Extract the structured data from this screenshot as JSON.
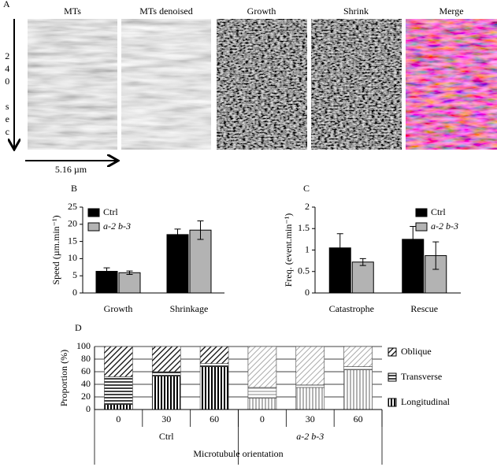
{
  "panel_a": {
    "label": "A",
    "columns": [
      "MTs",
      "MTs denoised",
      "Growth",
      "Shrink",
      "Merge"
    ],
    "time_label": "240 sec",
    "distance_label": "5.16 µm"
  },
  "chart_data": [
    {
      "type": "bar",
      "panel_label": "B",
      "ylabel": "Speed (µm.min⁻¹)",
      "categories": [
        "Growth",
        "Shrinkage"
      ],
      "series": [
        {
          "name": "Ctrl",
          "color": "#000000",
          "values": [
            6.3,
            17.0
          ],
          "errors": [
            1.0,
            1.6
          ]
        },
        {
          "name": "a-2 b-3",
          "color": "#b3b3b3",
          "values": [
            5.9,
            18.3
          ],
          "errors": [
            0.5,
            2.7
          ]
        }
      ],
      "ylim": [
        0,
        25
      ],
      "yticks": [
        0,
        5,
        10,
        15,
        20,
        25
      ],
      "legend": "upper left"
    },
    {
      "type": "bar",
      "panel_label": "C",
      "ylabel": "Freq. (event.min⁻¹)",
      "categories": [
        "Catastrophe",
        "Rescue"
      ],
      "series": [
        {
          "name": "Ctrl",
          "color": "#000000",
          "values": [
            1.05,
            1.25
          ],
          "errors": [
            0.33,
            0.3
          ]
        },
        {
          "name": "a-2 b-3",
          "color": "#b3b3b3",
          "values": [
            0.72,
            0.87
          ],
          "errors": [
            0.08,
            0.32
          ]
        }
      ],
      "ylim": [
        0,
        2
      ],
      "yticks": [
        0,
        0.5,
        1,
        1.5,
        2
      ],
      "legend": "upper right"
    },
    {
      "type": "stacked_bar",
      "panel_label": "D",
      "ylabel": "Proportion (%)",
      "xlabel": "Microtubule orientation",
      "groups": [
        {
          "label": "Ctrl",
          "categories": [
            "0",
            "30",
            "60"
          ]
        },
        {
          "label": "a-2 b-3",
          "categories": [
            "0",
            "30",
            "60"
          ]
        }
      ],
      "series": [
        {
          "name": "Longitudinal",
          "pattern": "vertical",
          "values": [
            8,
            53,
            68,
            18,
            35,
            63
          ]
        },
        {
          "name": "Transverse",
          "pattern": "horizontal",
          "values": [
            44,
            7,
            5,
            17,
            4,
            5
          ]
        },
        {
          "name": "Oblique",
          "pattern": "diagonal",
          "values": [
            48,
            40,
            27,
            65,
            61,
            32
          ]
        }
      ],
      "ylim": [
        0,
        100
      ],
      "yticks": [
        0,
        20,
        40,
        60,
        80,
        100
      ],
      "grid": true,
      "legend": "right"
    }
  ]
}
